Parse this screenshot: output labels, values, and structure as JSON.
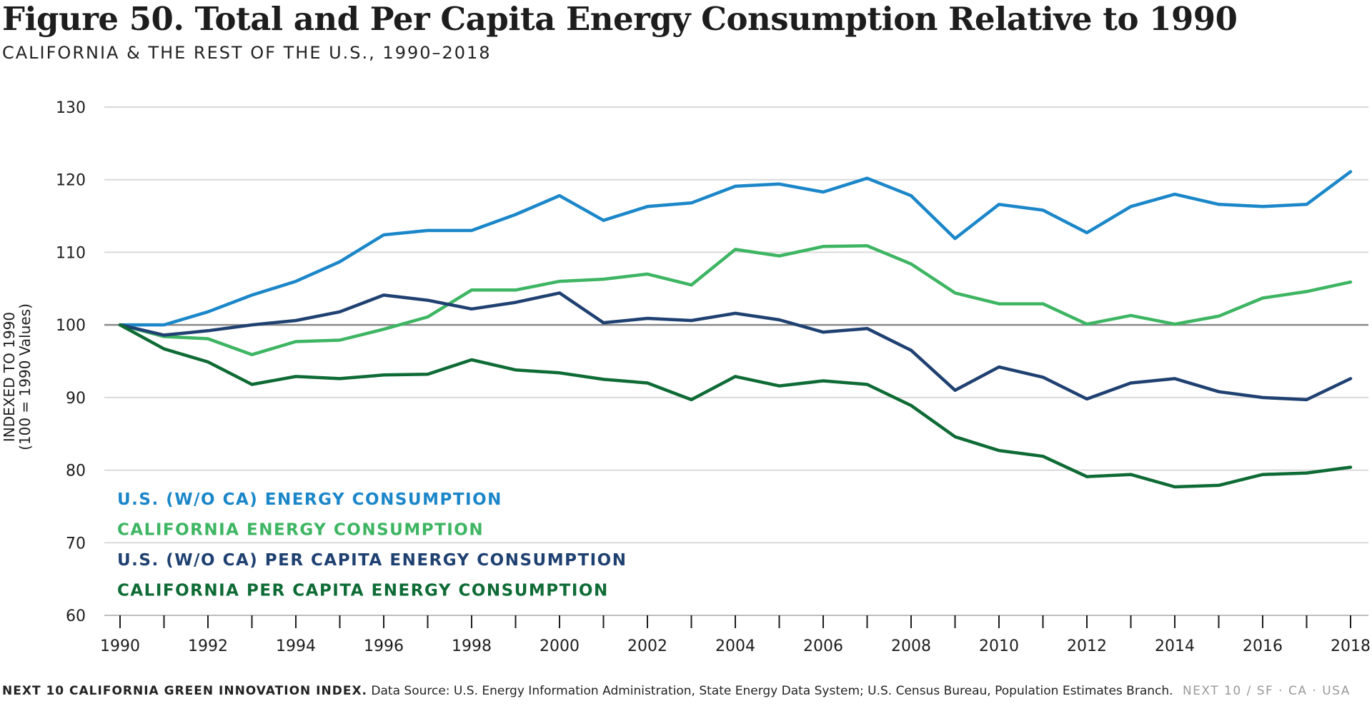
{
  "header": {
    "title": "Figure 50. Total and Per Capita Energy Consumption Relative to 1990",
    "subtitle": "CALIFORNIA & THE REST OF THE U.S., 1990–2018"
  },
  "footer": {
    "org": "NEXT 10 CALIFORNIA GREEN INNOVATION INDEX.",
    "source": "Data Source: U.S. Energy Information Administration, State Energy Data System; U.S. Census Bureau, Population Estimates Branch.",
    "brand": "NEXT 10 / SF · CA · USA"
  },
  "chart_data": {
    "type": "line",
    "ylabel": "INDEXED TO 1990",
    "ylabel_sub": "(100 = 1990 Values)",
    "xlabel": "",
    "ylim": [
      60,
      130
    ],
    "yticks": [
      60,
      70,
      80,
      90,
      100,
      110,
      120,
      130
    ],
    "xlim": [
      1990,
      2018
    ],
    "xticks": [
      1990,
      1992,
      1994,
      1996,
      1998,
      2000,
      2002,
      2004,
      2006,
      2008,
      2010,
      2012,
      2014,
      2016,
      2018
    ],
    "reference_line": 100,
    "grid": true,
    "legend_position": "bottom-left",
    "x": [
      1990,
      1991,
      1992,
      1993,
      1994,
      1995,
      1996,
      1997,
      1998,
      1999,
      2000,
      2001,
      2002,
      2003,
      2004,
      2005,
      2006,
      2007,
      2008,
      2009,
      2010,
      2011,
      2012,
      2013,
      2014,
      2015,
      2016,
      2017,
      2018
    ],
    "series": [
      {
        "name": "U.S. (W/O CA) ENERGY CONSUMPTION",
        "color": "#1b87c9",
        "values": [
          100,
          100,
          101.8,
          104.1,
          106,
          108.7,
          112.4,
          113,
          113,
          115.2,
          117.8,
          114.4,
          116.3,
          116.8,
          119.1,
          119.4,
          118.3,
          120.2,
          117.8,
          111.9,
          116.6,
          115.8,
          112.7,
          116.3,
          118,
          116.6,
          116.3,
          116.6,
          121.1
        ]
      },
      {
        "name": "CALIFORNIA ENERGY CONSUMPTION",
        "color": "#3db562",
        "values": [
          100,
          98.4,
          98.1,
          95.9,
          97.7,
          97.9,
          99.4,
          101.1,
          104.8,
          104.8,
          106,
          106.3,
          107,
          105.5,
          110.4,
          109.5,
          110.8,
          110.9,
          108.4,
          104.4,
          102.9,
          102.9,
          100.1,
          101.3,
          100.1,
          101.2,
          103.7,
          104.6,
          105.9
        ]
      },
      {
        "name": "U.S. (W/O CA) PER CAPITA ENERGY CONSUMPTION",
        "color": "#1f4171",
        "values": [
          100,
          98.6,
          99.2,
          100,
          100.6,
          101.8,
          104.1,
          103.4,
          102.2,
          103.1,
          104.4,
          100.3,
          100.9,
          100.6,
          101.6,
          100.7,
          99,
          99.5,
          96.5,
          91,
          94.2,
          92.8,
          89.8,
          92,
          92.6,
          90.8,
          90,
          89.7,
          92.6
        ]
      },
      {
        "name": "CALIFORNIA PER CAPITA ENERGY CONSUMPTION",
        "color": "#0e6b35",
        "values": [
          100,
          96.7,
          94.9,
          91.8,
          92.9,
          92.6,
          93.1,
          93.2,
          95.2,
          93.8,
          93.4,
          92.5,
          92,
          89.7,
          92.9,
          91.6,
          92.3,
          91.8,
          88.9,
          84.6,
          82.7,
          81.9,
          79.1,
          79.4,
          77.7,
          77.9,
          79.4,
          79.6,
          80.4
        ]
      }
    ]
  }
}
